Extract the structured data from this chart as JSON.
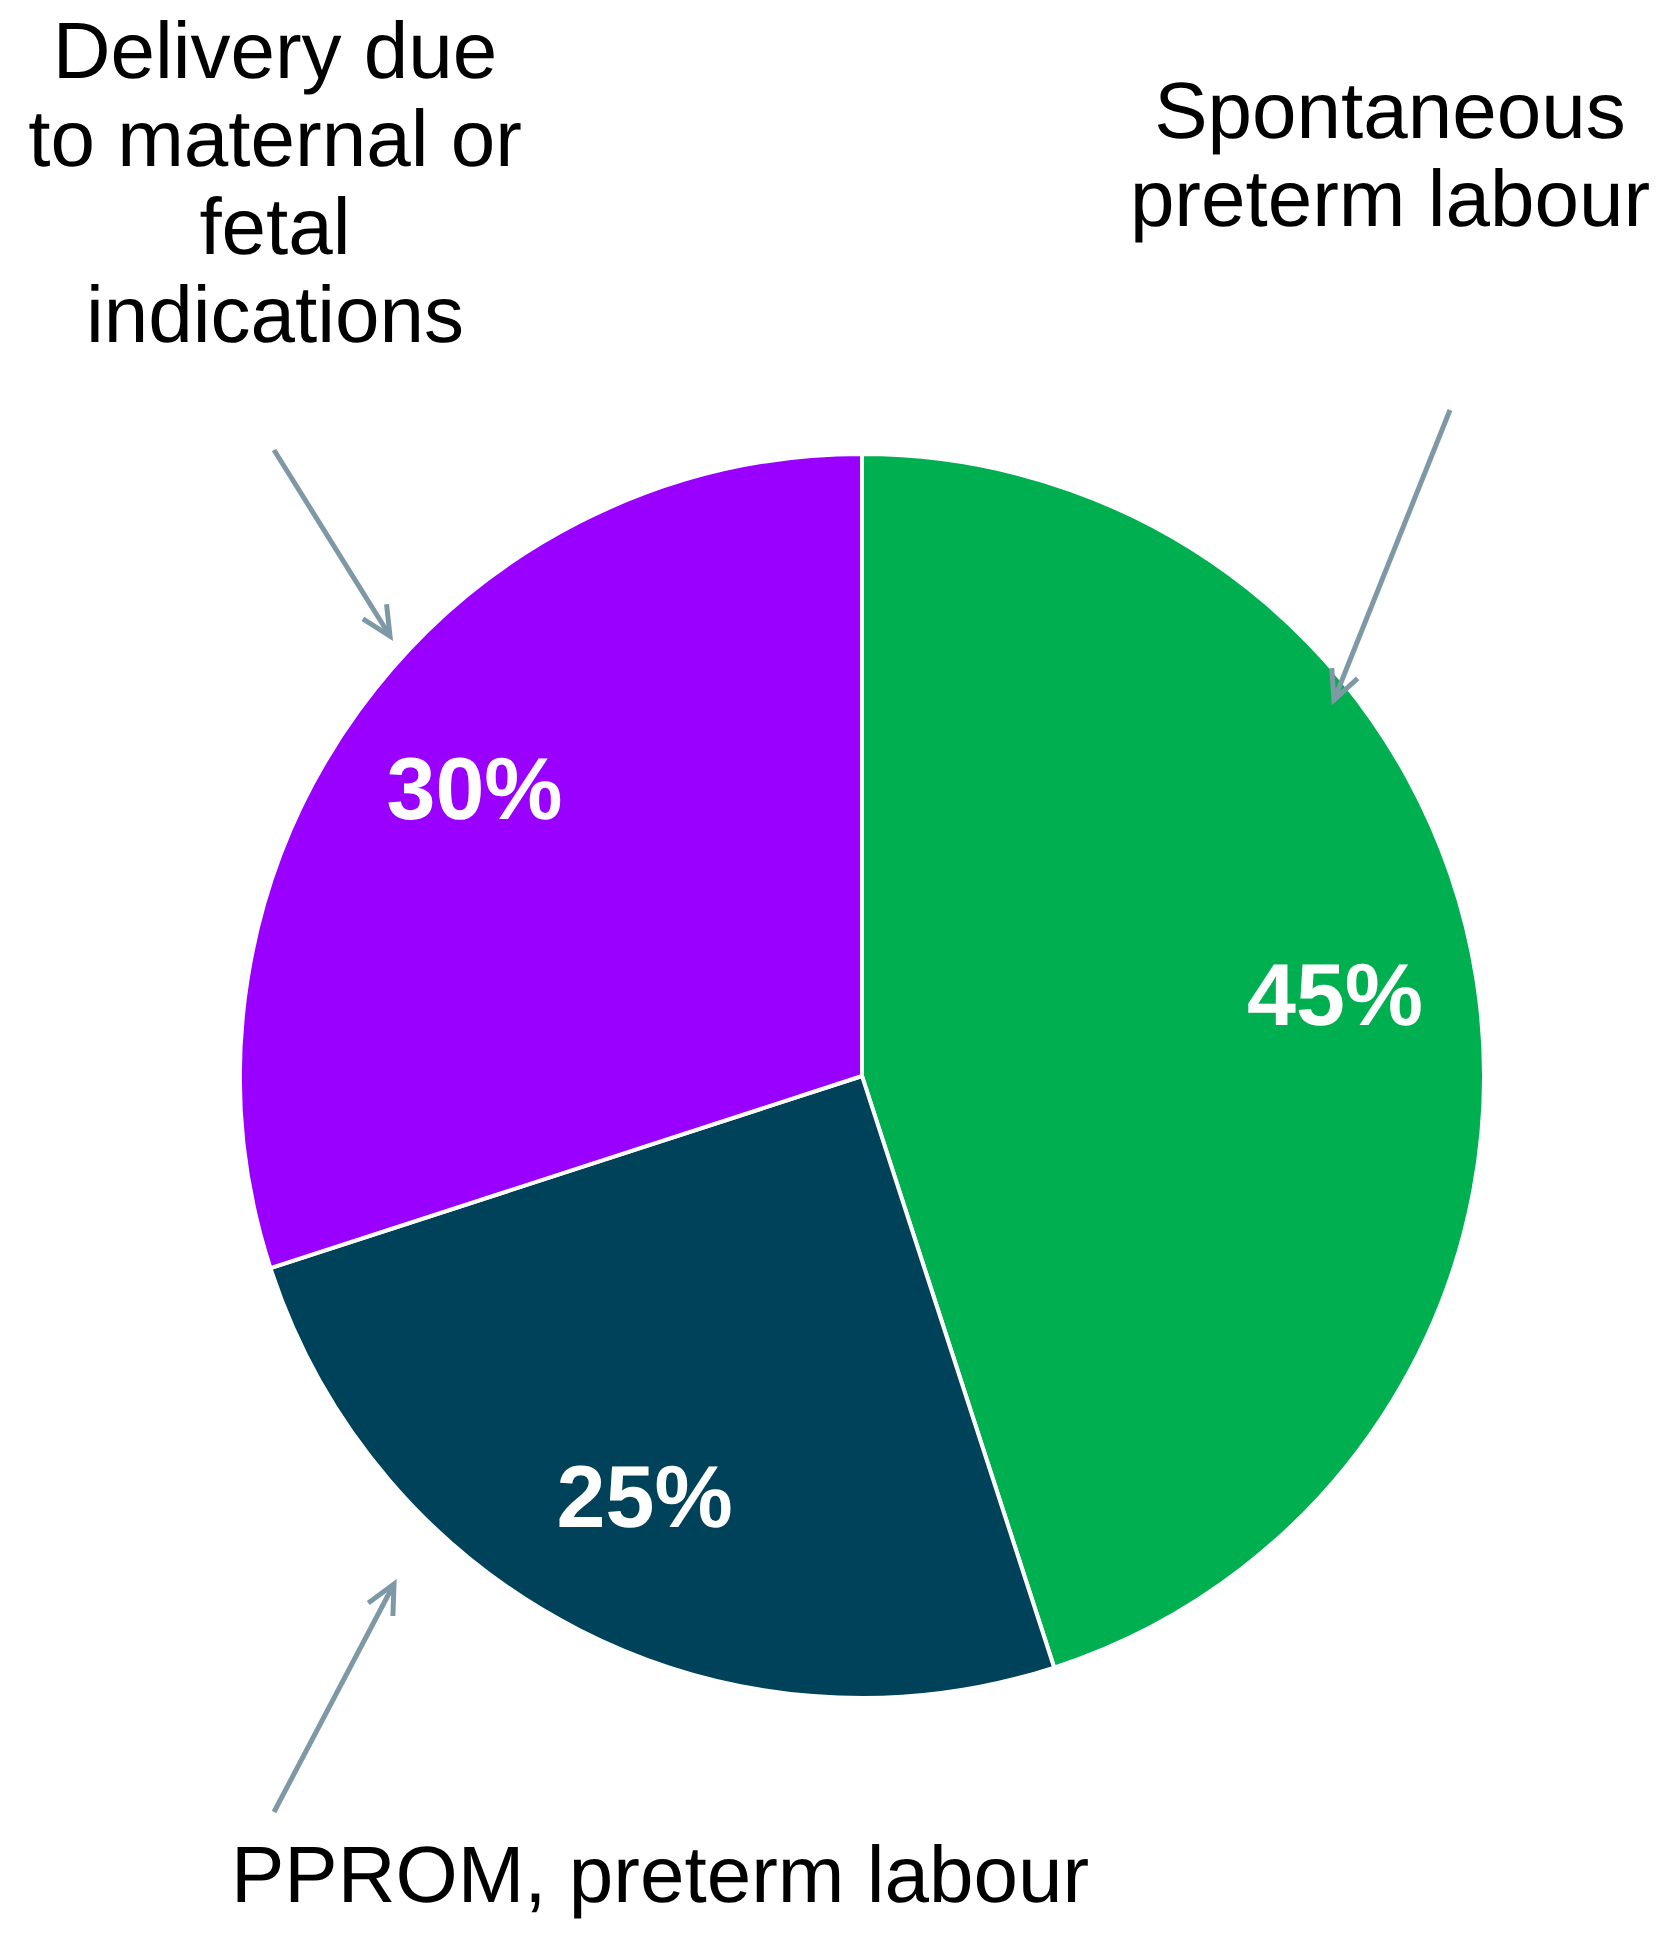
{
  "chart_data": {
    "type": "pie",
    "categories": [
      "Spontaneous preterm labour",
      "PPROM, preterm labour",
      "Delivery due to maternal or fetal indications"
    ],
    "values": [
      45,
      25,
      30
    ],
    "colors": [
      "#00b050",
      "#00425a",
      "#9900ff"
    ],
    "value_labels": [
      "45%",
      "25%",
      "30%"
    ],
    "legend": false
  }
}
